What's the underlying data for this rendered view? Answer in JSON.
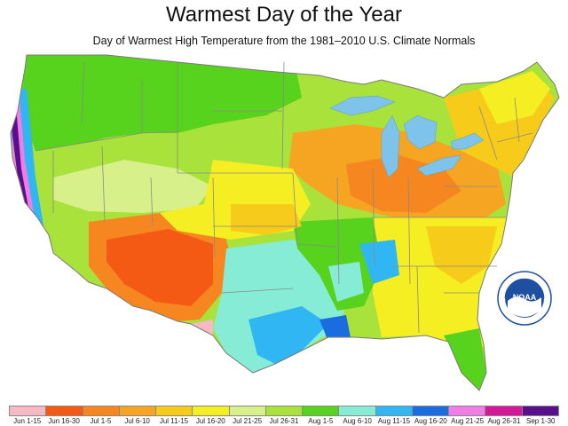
{
  "title": "Warmest Day of the Year",
  "subtitle": "Day of Warmest High Temperature from the 1981–2010 U.S. Climate Normals",
  "logo": {
    "text": "NOAA",
    "icon": "noaa-logo-icon"
  },
  "legend": [
    {
      "label": "Jun 1-15",
      "color": "#f7b9c3"
    },
    {
      "label": "Jun 16-30",
      "color": "#f55a14"
    },
    {
      "label": "Jul 1-5",
      "color": "#f6861f"
    },
    {
      "label": "Jul 6-10",
      "color": "#f6a523"
    },
    {
      "label": "Jul 11-15",
      "color": "#f7cb19"
    },
    {
      "label": "Jul 16-20",
      "color": "#f5ee23"
    },
    {
      "label": "Jul 21-25",
      "color": "#d8f08a"
    },
    {
      "label": "Jul 26-31",
      "color": "#a8e23a"
    },
    {
      "label": "Aug 1-5",
      "color": "#57d21d"
    },
    {
      "label": "Aug 6-10",
      "color": "#86ecd6"
    },
    {
      "label": "Aug 11-15",
      "color": "#30b6f3"
    },
    {
      "label": "Aug 16-20",
      "color": "#1a6de0"
    },
    {
      "label": "Aug 21-25",
      "color": "#f07ce5"
    },
    {
      "label": "Aug 26-31",
      "color": "#d4189a"
    },
    {
      "label": "Sep 1-30",
      "color": "#5a0f8c"
    }
  ],
  "colors": {
    "water": "#7ec4ea",
    "border": "#8a8a8a",
    "noaa_blue": "#1e4fa0"
  }
}
